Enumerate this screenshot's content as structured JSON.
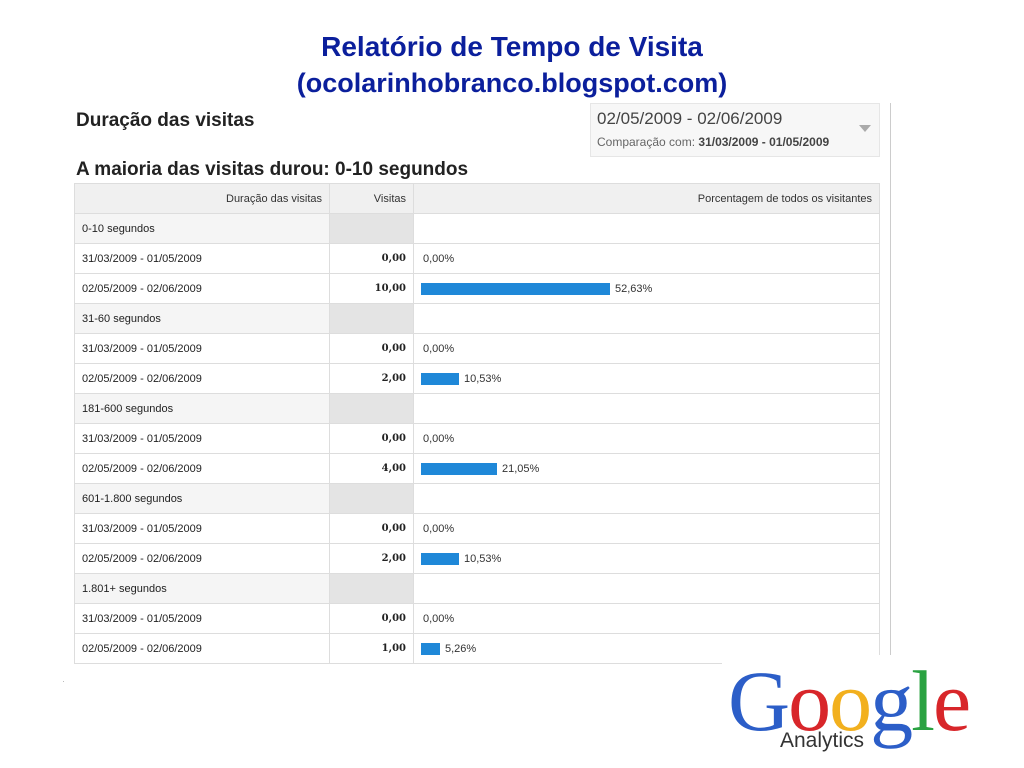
{
  "slide": {
    "title_line1": "Relatório de Tempo de Visita",
    "title_line2": "(ocolarinhobranco.blogspot.com)"
  },
  "report": {
    "title": "Duração das visitas",
    "headline": "A maioria das visitas durou: 0-10 segundos"
  },
  "date_range": {
    "current": "02/05/2009 - 02/06/2009",
    "comparison_label": "Comparação com:",
    "comparison": "31/03/2009 - 01/05/2009"
  },
  "table": {
    "headers": [
      "Duração das visitas",
      "Visitas",
      "Porcentagem de todos os visitantes"
    ],
    "groups": [
      {
        "label": "0-10 segundos",
        "rows": [
          {
            "period": "31/03/2009 - 01/05/2009",
            "visits": "0,00",
            "percent": "0,00%",
            "fraction": 0
          },
          {
            "period": "02/05/2009 - 02/06/2009",
            "visits": "10,00",
            "percent": "52,63%",
            "fraction": 0.5263
          }
        ]
      },
      {
        "label": "31-60 segundos",
        "rows": [
          {
            "period": "31/03/2009 - 01/05/2009",
            "visits": "0,00",
            "percent": "0,00%",
            "fraction": 0
          },
          {
            "period": "02/05/2009 - 02/06/2009",
            "visits": "2,00",
            "percent": "10,53%",
            "fraction": 0.1053
          }
        ]
      },
      {
        "label": "181-600 segundos",
        "rows": [
          {
            "period": "31/03/2009 - 01/05/2009",
            "visits": "0,00",
            "percent": "0,00%",
            "fraction": 0
          },
          {
            "period": "02/05/2009 - 02/06/2009",
            "visits": "4,00",
            "percent": "21,05%",
            "fraction": 0.2105
          }
        ]
      },
      {
        "label": "601-1.800 segundos",
        "rows": [
          {
            "period": "31/03/2009 - 01/05/2009",
            "visits": "0,00",
            "percent": "0,00%",
            "fraction": 0
          },
          {
            "period": "02/05/2009 - 02/06/2009",
            "visits": "2,00",
            "percent": "10,53%",
            "fraction": 0.1053
          }
        ]
      },
      {
        "label": "1.801+ segundos",
        "rows": [
          {
            "period": "31/03/2009 - 01/05/2009",
            "visits": "0,00",
            "percent": "0,00%",
            "fraction": 0
          },
          {
            "period": "02/05/2009 - 02/06/2009",
            "visits": "1,00",
            "percent": "5,26%",
            "fraction": 0.0526
          }
        ]
      }
    ]
  },
  "icons": {
    "dropdown": "chevron-down-icon",
    "logo": "google-analytics-logo"
  },
  "colors": {
    "title": "#0b1f9c",
    "bar": "#1f88d8"
  },
  "logo": {
    "word_letters": [
      "G",
      "o",
      "o",
      "g",
      "l",
      "e"
    ],
    "word_colors": [
      "#2c5ec8",
      "#d8262a",
      "#f2b01e",
      "#2c5ec8",
      "#2aa241",
      "#d8262a"
    ],
    "sub": "Analytics"
  }
}
